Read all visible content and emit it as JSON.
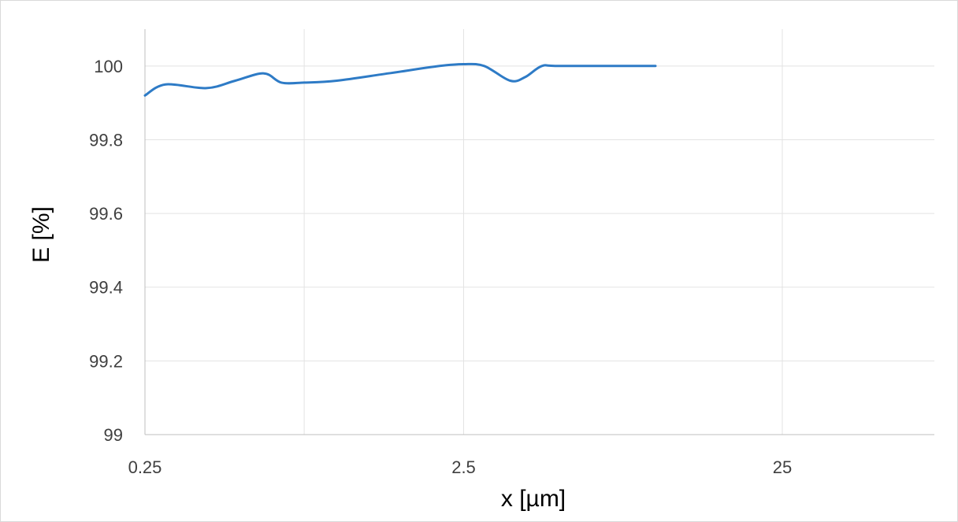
{
  "chart_data": {
    "type": "line",
    "xlabel": "x [µm]",
    "ylabel": "E [%]",
    "x_scale": "log",
    "xlim": [
      0.25,
      75
    ],
    "ylim": [
      99,
      100.1
    ],
    "x_ticks": [
      0.25,
      2.5,
      25
    ],
    "x_tick_labels": [
      "0.25",
      "2.5",
      "25"
    ],
    "x_minor_grid": [
      0.79
    ],
    "y_ticks": [
      99,
      99.2,
      99.4,
      99.6,
      99.8,
      100
    ],
    "y_tick_labels": [
      "99",
      "99.2",
      "99.4",
      "99.6",
      "99.8",
      "100"
    ],
    "grid": true,
    "legend": "none",
    "series": [
      {
        "color": "#2E7BC6",
        "x": [
          0.25,
          0.29,
          0.39,
          0.48,
          0.59,
          0.67,
          0.79,
          1.0,
          1.45,
          2.1,
          2.5,
          2.9,
          3.5,
          3.9,
          4.4,
          5.0,
          10
        ],
        "y": [
          99.92,
          99.95,
          99.94,
          99.96,
          99.98,
          99.955,
          99.955,
          99.96,
          99.98,
          100.0,
          100.005,
          100.0,
          99.96,
          99.97,
          100.0,
          100.0,
          100.0
        ]
      }
    ]
  }
}
